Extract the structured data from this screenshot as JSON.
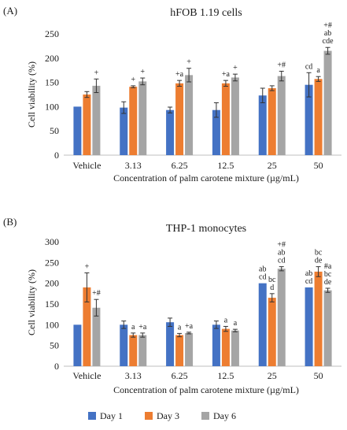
{
  "chart_data": [
    {
      "type": "bar",
      "panel": "(A)",
      "title": "hFOB 1.19 cells",
      "xlabel": "Concentration  of palm carotene mixture  (µg/mL)",
      "ylabel": "Cell viability  (%)",
      "ylim": [
        0,
        250
      ],
      "yticks": [
        0,
        50,
        100,
        150,
        200,
        250
      ],
      "categories": [
        "Vehicle",
        "3.13",
        "6.25",
        "12.5",
        "25",
        "50"
      ],
      "series": [
        {
          "name": "Day 1",
          "values": [
            100,
            98,
            93,
            93,
            123,
            145
          ],
          "errors": [
            0,
            12,
            6,
            15,
            15,
            25
          ],
          "annotations": [
            "",
            "",
            "",
            "",
            "",
            "cd"
          ]
        },
        {
          "name": "Day 3",
          "values": [
            125,
            141,
            148,
            148,
            138,
            157
          ],
          "errors": [
            6,
            2,
            6,
            6,
            5,
            5
          ],
          "annotations": [
            "",
            "+",
            "+a",
            "+a",
            "",
            "a"
          ]
        },
        {
          "name": "Day 6",
          "values": [
            143,
            152,
            165,
            160,
            163,
            215
          ],
          "errors": [
            14,
            7,
            14,
            7,
            10,
            7
          ],
          "annotations": [
            "+",
            "+",
            "+",
            "+",
            "+#",
            "+#\nab\ncde"
          ]
        }
      ]
    },
    {
      "type": "bar",
      "panel": "(B)",
      "title": "THP-1 monocytes",
      "xlabel": "Concentration  of palm carotene mixture  (µg/mL)",
      "ylabel": "Cell viability  (%)",
      "ylim": [
        0,
        300
      ],
      "yticks": [
        0,
        50,
        100,
        150,
        200,
        250,
        300
      ],
      "categories": [
        "Vehicle",
        "3.13",
        "6.25",
        "12.5",
        "25",
        "50"
      ],
      "series": [
        {
          "name": "Day 1",
          "values": [
            100,
            100,
            106,
            100,
            200,
            190
          ],
          "errors": [
            0,
            9,
            10,
            9,
            0,
            0
          ],
          "annotations": [
            "",
            "",
            "",
            "",
            "ab\ncd",
            "ab\ncd"
          ]
        },
        {
          "name": "Day 3",
          "values": [
            190,
            75,
            75,
            90,
            165,
            228
          ],
          "errors": [
            35,
            5,
            4,
            6,
            10,
            12
          ],
          "annotations": [
            "+",
            "a",
            "a",
            "a",
            "bc\nd",
            "bc\nde"
          ]
        },
        {
          "name": "Day 6",
          "values": [
            141,
            75,
            80,
            86,
            235,
            183
          ],
          "errors": [
            20,
            5,
            2,
            3,
            5,
            5
          ],
          "annotations": [
            "+#",
            "+a",
            "+a",
            "a",
            "+#\nab\ncd",
            "#a\nbc\nde"
          ]
        }
      ]
    }
  ],
  "legend": {
    "items": [
      {
        "name": "Day 1",
        "color": "#4472c4"
      },
      {
        "name": "Day 3",
        "color": "#ed7d31"
      },
      {
        "name": "Day 6",
        "color": "#a5a5a5"
      }
    ],
    "placement": "bottom-center"
  },
  "colors": {
    "Day 1": "#4472c4",
    "Day 3": "#ed7d31",
    "Day 6": "#a5a5a5"
  }
}
